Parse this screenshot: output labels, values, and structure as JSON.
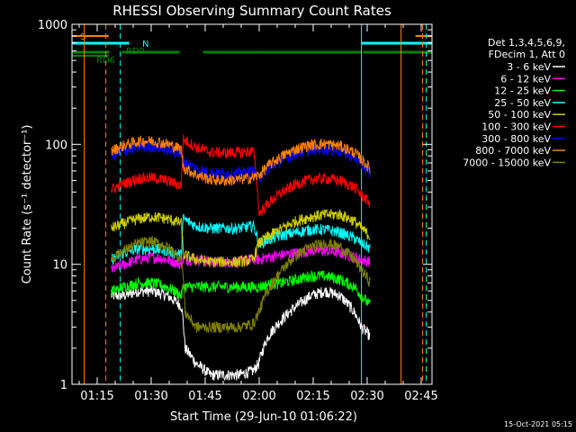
{
  "chart_data": {
    "type": "line",
    "title": "RHESSI Observing Summary Count Rates",
    "xlabel": "Start Time (29-Jun-10 01:06:22)",
    "ylabel": "Count Rate (s⁻¹ detector⁻¹)",
    "x_range_minutes": [
      1.6,
      101.6
    ],
    "x_ticks": [
      {
        "minute": 8.6,
        "label": "01:15"
      },
      {
        "minute": 23.6,
        "label": "01:30"
      },
      {
        "minute": 38.6,
        "label": "01:45"
      },
      {
        "minute": 53.6,
        "label": "02:00"
      },
      {
        "minute": 68.6,
        "label": "02:15"
      },
      {
        "minute": 83.6,
        "label": "02:30"
      },
      {
        "minute": 98.6,
        "label": "02:45"
      }
    ],
    "y_scale": "log",
    "ylim": [
      1,
      1000
    ],
    "y_ticks": [
      {
        "value": 1,
        "label": "1"
      },
      {
        "value": 10,
        "label": "10"
      },
      {
        "value": 100,
        "label": "100"
      },
      {
        "value": 1000,
        "label": "1000"
      }
    ],
    "footer": "15-Oct-2021 05:15",
    "legend": {
      "header": [
        "Det 1,3,4,5,6,9,",
        "FDecim 1, Att 0"
      ],
      "placement": "right"
    },
    "data_window_minutes": [
      12.5,
      84.5
    ],
    "attenuator_step_minutes": [
      32.5,
      53.5
    ],
    "series": [
      {
        "name": "3 - 6 keV",
        "color": "#ffffff",
        "x": [
          12.5,
          16,
          20,
          24,
          28,
          32,
          33,
          36,
          40,
          44,
          48,
          52,
          53.5,
          56,
          60,
          64,
          68,
          72,
          76,
          80,
          82,
          84.5
        ],
        "y": [
          5.5,
          5.5,
          6.0,
          6.0,
          5.5,
          4.5,
          2.0,
          1.5,
          1.2,
          1.2,
          1.2,
          1.3,
          1.5,
          2.5,
          3.5,
          4.5,
          5.5,
          6.0,
          5.5,
          4.0,
          3.0,
          2.5
        ]
      },
      {
        "name": "6 - 12 keV",
        "color": "#ff00ff",
        "x": [
          12.5,
          16,
          20,
          24,
          28,
          32,
          32.5,
          36,
          40,
          44,
          48,
          52,
          53.5,
          56,
          60,
          64,
          68,
          72,
          76,
          80,
          82,
          84.5
        ],
        "y": [
          9.0,
          10.0,
          11.0,
          11.5,
          11.0,
          10.0,
          11.0,
          11.0,
          10.5,
          10.5,
          10.5,
          11.0,
          11.0,
          11.5,
          12.0,
          12.5,
          13.0,
          13.0,
          12.5,
          11.5,
          11.0,
          10.5
        ]
      },
      {
        "name": "12 - 25 keV",
        "color": "#00ff00",
        "x": [
          12.5,
          16,
          20,
          24,
          28,
          32,
          32.5,
          36,
          40,
          44,
          48,
          52,
          53.5,
          56,
          60,
          64,
          68,
          72,
          76,
          80,
          82,
          84.5
        ],
        "y": [
          6.0,
          6.5,
          7.0,
          7.0,
          6.5,
          5.5,
          6.5,
          6.5,
          6.5,
          6.5,
          6.5,
          6.5,
          6.5,
          6.8,
          7.0,
          7.5,
          8.0,
          8.0,
          7.5,
          6.5,
          5.5,
          4.5
        ]
      },
      {
        "name": "25 - 50 keV",
        "color": "#00ffff",
        "x": [
          12.5,
          16,
          20,
          24,
          28,
          32,
          32.5,
          36,
          40,
          44,
          48,
          52,
          53.5,
          56,
          60,
          64,
          68,
          72,
          76,
          80,
          82,
          84.5
        ],
        "y": [
          11.0,
          12.5,
          13.5,
          13.5,
          13.0,
          12.0,
          24.0,
          21.0,
          20.0,
          20.0,
          20.0,
          21.0,
          15.0,
          16.0,
          17.5,
          18.5,
          19.5,
          19.5,
          18.5,
          16.5,
          15.0,
          13.5
        ]
      },
      {
        "name": "50 - 100 keV",
        "color": "#cccc00",
        "x": [
          12.5,
          16,
          20,
          24,
          28,
          32,
          32.5,
          36,
          40,
          44,
          48,
          52,
          53.5,
          56,
          60,
          64,
          68,
          72,
          76,
          80,
          82,
          84.5
        ],
        "y": [
          20.0,
          22.0,
          24.0,
          25.0,
          24.0,
          22.0,
          12.0,
          11.0,
          10.5,
          10.5,
          10.5,
          11.0,
          15.0,
          17.0,
          20.0,
          23.0,
          25.0,
          26.0,
          26.0,
          23.0,
          20.0,
          17.0
        ]
      },
      {
        "name": "100 - 300 keV",
        "color": "#ff0000",
        "x": [
          12.5,
          16,
          20,
          24,
          28,
          32,
          32.5,
          36,
          40,
          44,
          48,
          52,
          53.5,
          56,
          60,
          64,
          68,
          72,
          76,
          80,
          82,
          84.5
        ],
        "y": [
          42.0,
          47.0,
          52.0,
          53.0,
          50.0,
          45.0,
          110.0,
          95.0,
          86.0,
          85.0,
          86.0,
          88.0,
          26.0,
          32.0,
          40.0,
          47.0,
          51.0,
          52.0,
          50.0,
          44.0,
          38.0,
          32.0
        ]
      },
      {
        "name": "300 - 800 keV",
        "color": "#0000ff",
        "x": [
          12.5,
          16,
          20,
          24,
          28,
          32,
          32.5,
          36,
          40,
          44,
          48,
          52,
          53.5,
          56,
          60,
          64,
          68,
          72,
          76,
          80,
          82,
          84.5
        ],
        "y": [
          80.0,
          88.0,
          95.0,
          96.0,
          91.0,
          82.0,
          72.0,
          63.0,
          58.0,
          57.0,
          58.0,
          60.0,
          52.0,
          62.0,
          74.0,
          84.0,
          90.0,
          91.0,
          88.0,
          78.0,
          68.0,
          57.0
        ]
      },
      {
        "name": "800 - 7000 keV",
        "color": "#ff8000",
        "x": [
          12.5,
          16,
          20,
          24,
          28,
          32,
          32.5,
          36,
          40,
          44,
          48,
          52,
          53.5,
          56,
          60,
          64,
          68,
          72,
          76,
          80,
          82,
          84.5
        ],
        "y": [
          88.0,
          98.0,
          106.0,
          107.0,
          101.0,
          91.0,
          64.0,
          56.0,
          51.0,
          50.0,
          51.0,
          53.0,
          55.0,
          66.0,
          80.0,
          92.0,
          99.0,
          101.0,
          97.0,
          86.0,
          75.0,
          62.0
        ]
      },
      {
        "name": "7000 - 15000 keV",
        "color": "#808000",
        "x": [
          12.5,
          16,
          20,
          24,
          28,
          32,
          33,
          36,
          40,
          44,
          48,
          52,
          53.5,
          56,
          60,
          64,
          68,
          72,
          76,
          80,
          82,
          84.5
        ],
        "y": [
          11.0,
          13.0,
          15.0,
          15.5,
          14.0,
          11.0,
          4.0,
          3.0,
          3.0,
          3.0,
          3.0,
          3.2,
          4.0,
          6.0,
          9.0,
          12.0,
          14.0,
          15.0,
          14.0,
          11.0,
          9.0,
          7.0
        ]
      }
    ],
    "flag_bars": [
      {
        "label": "S",
        "color": "#ff8000",
        "segments": [
          [
            1.6,
            11.8
          ],
          [
            97.0,
            101.6
          ]
        ]
      },
      {
        "label": "N",
        "color": "#00ffff",
        "segments": [
          [
            1.6,
            17.5
          ],
          [
            82.0,
            101.6
          ]
        ]
      },
      {
        "label": "",
        "color": "#008000",
        "segments": [
          [
            1.6,
            12.0
          ],
          [
            15.5,
            31.5
          ],
          [
            38.0,
            53.5
          ],
          [
            53.5,
            82.0
          ],
          [
            82.5,
            101.6
          ]
        ]
      },
      {
        "label": "RD6",
        "color": "#008000",
        "segments": [
          [
            1.6,
            11.8
          ]
        ]
      },
      {
        "label": "RD0",
        "color": "#008000",
        "segments": []
      }
    ],
    "vertical_markers": [
      {
        "minute": 5.0,
        "color": "#ff8000",
        "style": "solid"
      },
      {
        "minute": 11.0,
        "color": "#ff8000",
        "style": "dashed"
      },
      {
        "minute": 15.0,
        "color": "#00ffff",
        "style": "dashed"
      },
      {
        "minute": 82.0,
        "color": "#00ffff",
        "style": "solid"
      },
      {
        "minute": 93.0,
        "color": "#ff8000",
        "style": "solid"
      },
      {
        "minute": 99.0,
        "color": "#ff8000",
        "style": "dashed"
      },
      {
        "minute": 100.0,
        "color": "#00ffff",
        "style": "dashed"
      }
    ],
    "grid": false
  }
}
